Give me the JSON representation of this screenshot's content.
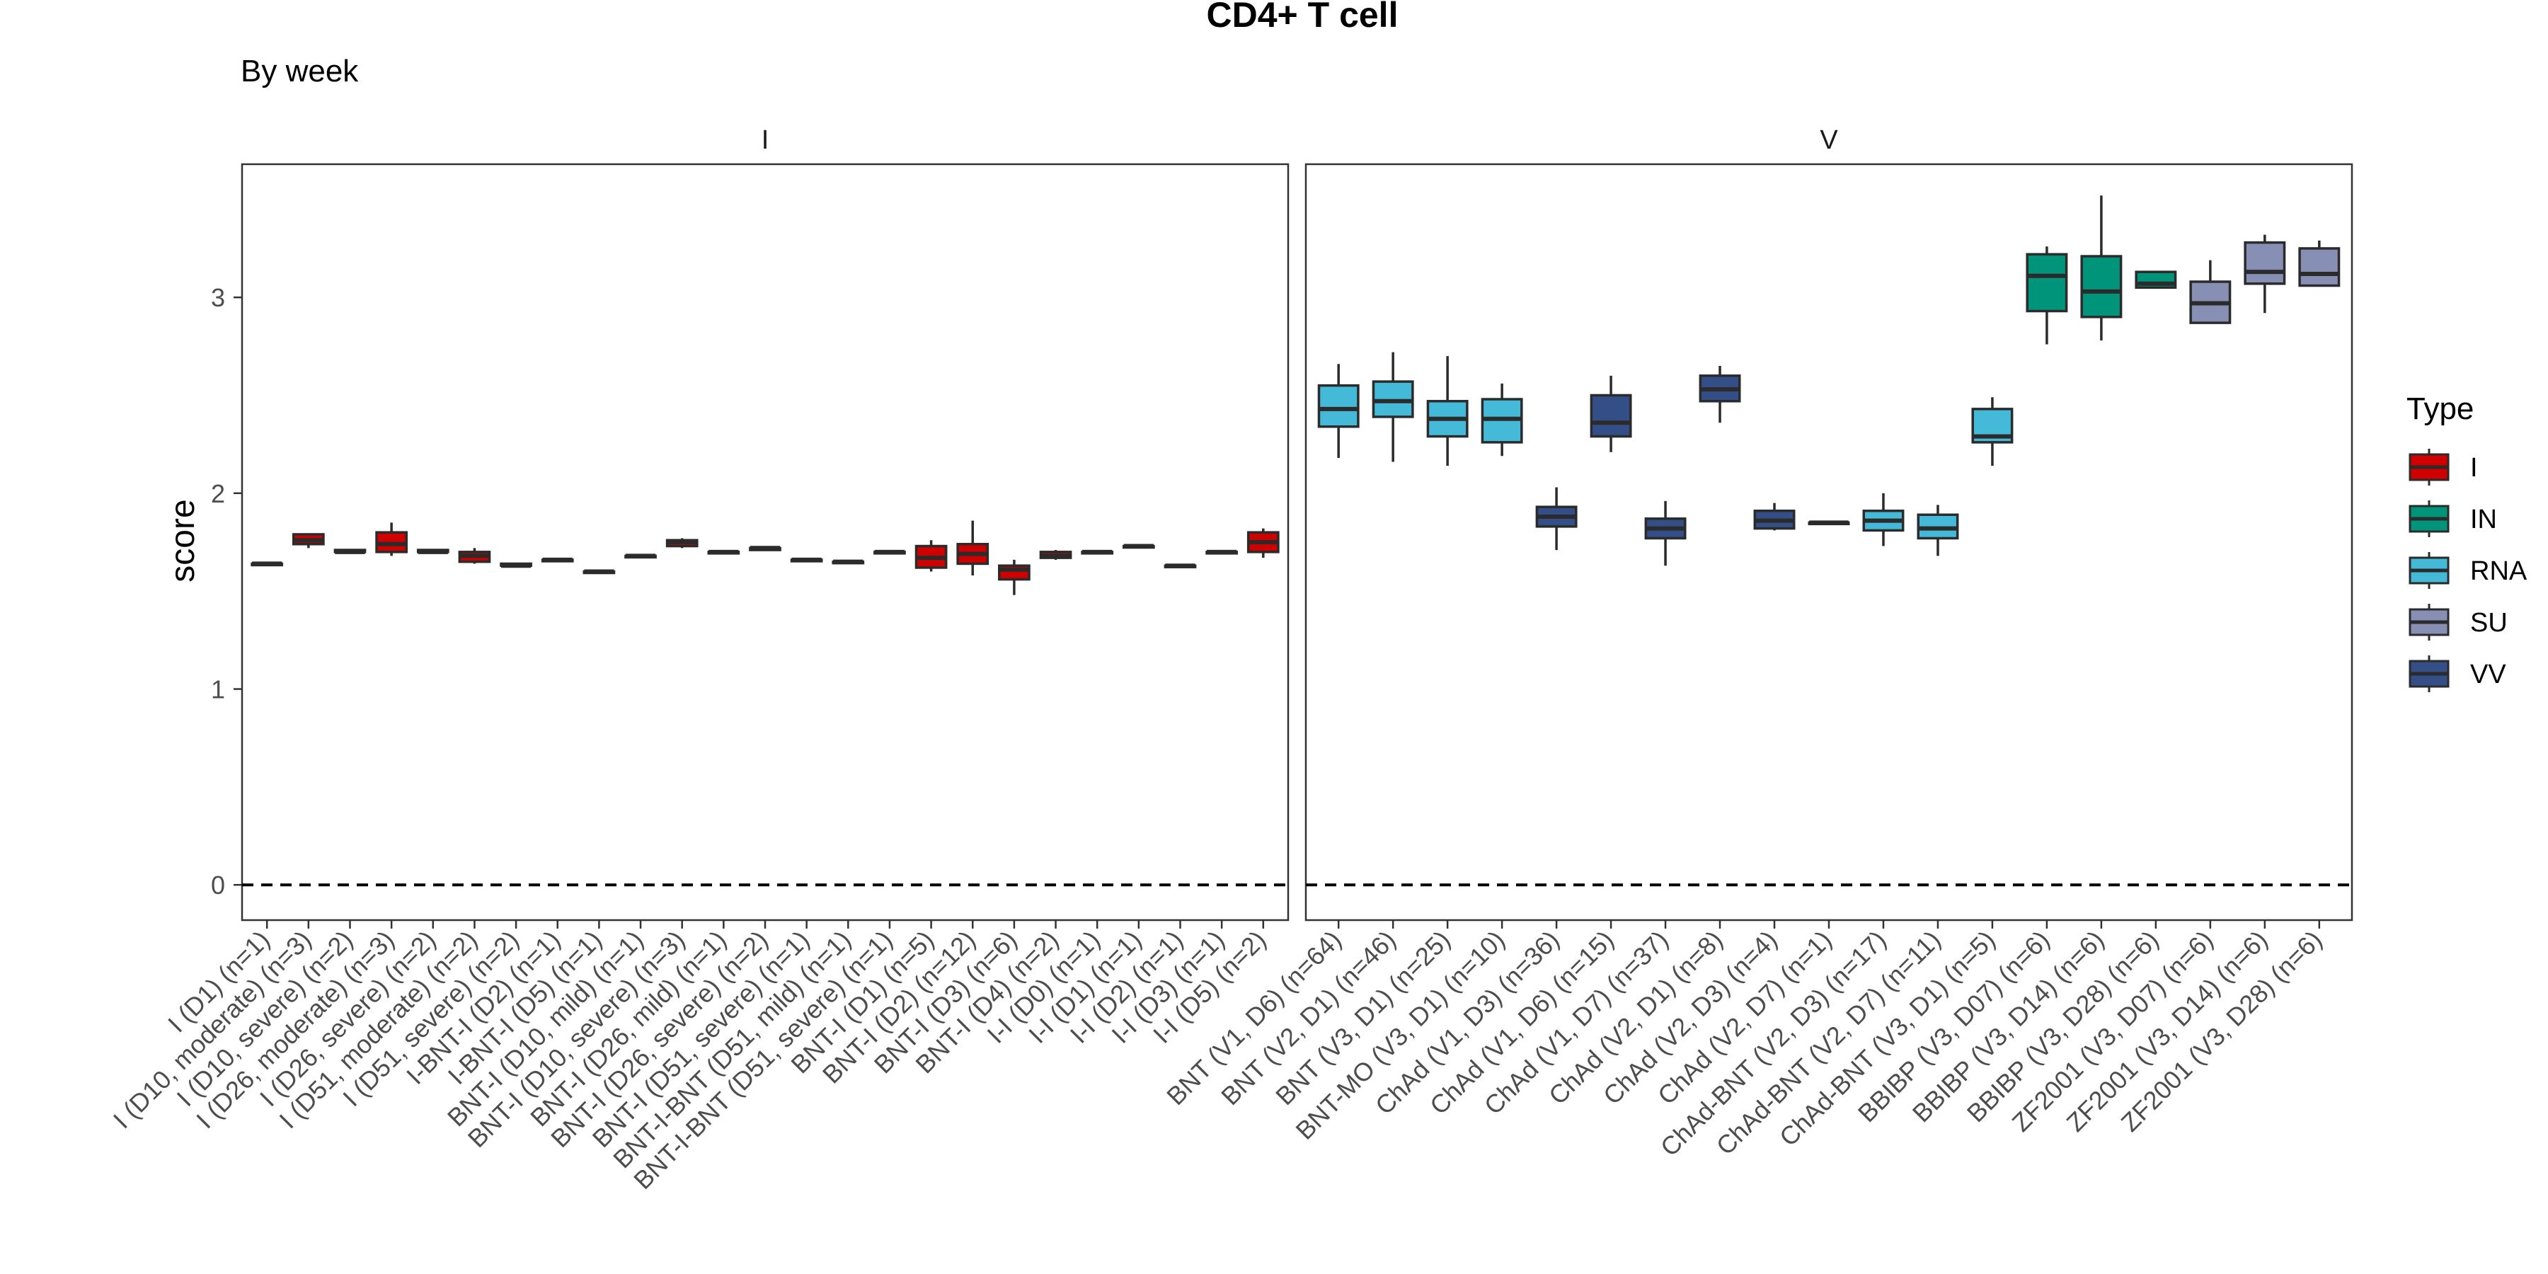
{
  "chart_data": {
    "type": "boxplot",
    "title": "CD4+ T cell",
    "subtitle": "By week",
    "ylabel": "score",
    "xlabel": "",
    "ylim": [
      -0.18,
      3.68
    ],
    "yticks": [
      0,
      1,
      2,
      3
    ],
    "reference_line": {
      "y": 0,
      "style": "dashed"
    },
    "grid": false,
    "legend": {
      "title": "Type",
      "position": "right",
      "items": [
        {
          "label": "I",
          "color": "#D10000"
        },
        {
          "label": "IN",
          "color": "#00957A"
        },
        {
          "label": "RNA",
          "color": "#45B9D8"
        },
        {
          "label": "SU",
          "color": "#8790B4"
        },
        {
          "label": "VV",
          "color": "#344F88"
        }
      ]
    },
    "panels": [
      {
        "label": "I",
        "boxes": [
          {
            "category": "I (D1) (n=1)",
            "type": "I",
            "q1": 1.64,
            "median": 1.64,
            "q3": 1.64,
            "lo": 1.64,
            "hi": 1.64
          },
          {
            "category": "I (D10, moderate) (n=3)",
            "type": "I",
            "q1": 1.74,
            "median": 1.76,
            "q3": 1.79,
            "lo": 1.72,
            "hi": 1.79
          },
          {
            "category": "I (D10, severe) (n=2)",
            "type": "I",
            "q1": 1.7,
            "median": 1.7,
            "q3": 1.71,
            "lo": 1.7,
            "hi": 1.71
          },
          {
            "category": "I (D26, moderate) (n=3)",
            "type": "I",
            "q1": 1.7,
            "median": 1.74,
            "q3": 1.8,
            "lo": 1.68,
            "hi": 1.85
          },
          {
            "category": "I (D26, severe) (n=2)",
            "type": "I",
            "q1": 1.7,
            "median": 1.7,
            "q3": 1.71,
            "lo": 1.7,
            "hi": 1.71
          },
          {
            "category": "I (D51, moderate) (n=2)",
            "type": "I",
            "q1": 1.65,
            "median": 1.68,
            "q3": 1.7,
            "lo": 1.64,
            "hi": 1.72
          },
          {
            "category": "I (D51, severe) (n=2)",
            "type": "I",
            "q1": 1.63,
            "median": 1.63,
            "q3": 1.64,
            "lo": 1.63,
            "hi": 1.64
          },
          {
            "category": "I-BNT-I (D2) (n=1)",
            "type": "I",
            "q1": 1.66,
            "median": 1.66,
            "q3": 1.66,
            "lo": 1.66,
            "hi": 1.66
          },
          {
            "category": "I-BNT-I (D5) (n=1)",
            "type": "I",
            "q1": 1.6,
            "median": 1.6,
            "q3": 1.6,
            "lo": 1.6,
            "hi": 1.6
          },
          {
            "category": "BNT-I (D10, mild) (n=1)",
            "type": "I",
            "q1": 1.68,
            "median": 1.68,
            "q3": 1.68,
            "lo": 1.68,
            "hi": 1.68
          },
          {
            "category": "BNT-I (D10, severe) (n=3)",
            "type": "I",
            "q1": 1.73,
            "median": 1.75,
            "q3": 1.76,
            "lo": 1.72,
            "hi": 1.77
          },
          {
            "category": "BNT-I (D26, mild) (n=1)",
            "type": "I",
            "q1": 1.7,
            "median": 1.7,
            "q3": 1.7,
            "lo": 1.7,
            "hi": 1.7
          },
          {
            "category": "BNT-I (D26, severe) (n=2)",
            "type": "I",
            "q1": 1.71,
            "median": 1.72,
            "q3": 1.72,
            "lo": 1.71,
            "hi": 1.72
          },
          {
            "category": "BNT-I (D51, severe) (n=1)",
            "type": "I",
            "q1": 1.66,
            "median": 1.66,
            "q3": 1.66,
            "lo": 1.66,
            "hi": 1.66
          },
          {
            "category": "BNT-I-BNT (D51, mild) (n=1)",
            "type": "I",
            "q1": 1.65,
            "median": 1.65,
            "q3": 1.65,
            "lo": 1.65,
            "hi": 1.65
          },
          {
            "category": "BNT-I-BNT (D51, severe) (n=1)",
            "type": "I",
            "q1": 1.7,
            "median": 1.7,
            "q3": 1.7,
            "lo": 1.7,
            "hi": 1.7
          },
          {
            "category": "BNT-I (D1) (n=5)",
            "type": "I",
            "q1": 1.62,
            "median": 1.67,
            "q3": 1.73,
            "lo": 1.6,
            "hi": 1.76
          },
          {
            "category": "BNT-I (D2) (n=12)",
            "type": "I",
            "q1": 1.64,
            "median": 1.69,
            "q3": 1.74,
            "lo": 1.58,
            "hi": 1.86
          },
          {
            "category": "BNT-I (D3) (n=6)",
            "type": "I",
            "q1": 1.56,
            "median": 1.61,
            "q3": 1.63,
            "lo": 1.48,
            "hi": 1.66
          },
          {
            "category": "BNT-I (D4) (n=2)",
            "type": "I",
            "q1": 1.67,
            "median": 1.68,
            "q3": 1.7,
            "lo": 1.66,
            "hi": 1.71
          },
          {
            "category": "I-I (D0) (n=1)",
            "type": "I",
            "q1": 1.7,
            "median": 1.7,
            "q3": 1.7,
            "lo": 1.7,
            "hi": 1.7
          },
          {
            "category": "I-I (D1) (n=1)",
            "type": "I",
            "q1": 1.73,
            "median": 1.73,
            "q3": 1.73,
            "lo": 1.73,
            "hi": 1.73
          },
          {
            "category": "I-I (D2) (n=1)",
            "type": "I",
            "q1": 1.63,
            "median": 1.63,
            "q3": 1.63,
            "lo": 1.63,
            "hi": 1.63
          },
          {
            "category": "I-I (D3) (n=1)",
            "type": "I",
            "q1": 1.7,
            "median": 1.7,
            "q3": 1.7,
            "lo": 1.7,
            "hi": 1.7
          },
          {
            "category": "I-I (D5) (n=2)",
            "type": "I",
            "q1": 1.7,
            "median": 1.75,
            "q3": 1.8,
            "lo": 1.67,
            "hi": 1.82
          }
        ]
      },
      {
        "label": "V",
        "boxes": [
          {
            "category": "BNT (V1, D6) (n=64)",
            "type": "RNA",
            "q1": 2.34,
            "median": 2.43,
            "q3": 2.55,
            "lo": 2.18,
            "hi": 2.66
          },
          {
            "category": "BNT (V2, D1) (n=46)",
            "type": "RNA",
            "q1": 2.39,
            "median": 2.47,
            "q3": 2.57,
            "lo": 2.16,
            "hi": 2.72
          },
          {
            "category": "BNT (V3, D1) (n=25)",
            "type": "RNA",
            "q1": 2.29,
            "median": 2.38,
            "q3": 2.47,
            "lo": 2.14,
            "hi": 2.7
          },
          {
            "category": "BNT-MO (V3, D1) (n=10)",
            "type": "RNA",
            "q1": 2.26,
            "median": 2.38,
            "q3": 2.48,
            "lo": 2.19,
            "hi": 2.56
          },
          {
            "category": "ChAd (V1, D3) (n=36)",
            "type": "VV",
            "q1": 1.83,
            "median": 1.88,
            "q3": 1.93,
            "lo": 1.71,
            "hi": 2.03
          },
          {
            "category": "ChAd (V1, D6) (n=15)",
            "type": "VV",
            "q1": 2.29,
            "median": 2.36,
            "q3": 2.5,
            "lo": 2.21,
            "hi": 2.6
          },
          {
            "category": "ChAd (V1, D7) (n=37)",
            "type": "VV",
            "q1": 1.77,
            "median": 1.82,
            "q3": 1.87,
            "lo": 1.63,
            "hi": 1.96
          },
          {
            "category": "ChAd (V2, D1) (n=8)",
            "type": "VV",
            "q1": 2.47,
            "median": 2.53,
            "q3": 2.6,
            "lo": 2.36,
            "hi": 2.65
          },
          {
            "category": "ChAd (V2, D3) (n=4)",
            "type": "VV",
            "q1": 1.82,
            "median": 1.86,
            "q3": 1.91,
            "lo": 1.81,
            "hi": 1.95
          },
          {
            "category": "ChAd (V2, D7) (n=1)",
            "type": "VV",
            "q1": 1.85,
            "median": 1.85,
            "q3": 1.85,
            "lo": 1.85,
            "hi": 1.85
          },
          {
            "category": "ChAd-BNT (V2, D3) (n=17)",
            "type": "RNA",
            "q1": 1.81,
            "median": 1.86,
            "q3": 1.91,
            "lo": 1.73,
            "hi": 2.0
          },
          {
            "category": "ChAd-BNT (V2, D7) (n=11)",
            "type": "RNA",
            "q1": 1.77,
            "median": 1.82,
            "q3": 1.89,
            "lo": 1.68,
            "hi": 1.94
          },
          {
            "category": "ChAd-BNT (V3, D1) (n=5)",
            "type": "RNA",
            "q1": 2.26,
            "median": 2.29,
            "q3": 2.43,
            "lo": 2.14,
            "hi": 2.49
          },
          {
            "category": "BBIBP (V3, D07) (n=6)",
            "type": "IN",
            "q1": 2.93,
            "median": 3.11,
            "q3": 3.22,
            "lo": 2.76,
            "hi": 3.26
          },
          {
            "category": "BBIBP (V3, D14) (n=6)",
            "type": "IN",
            "q1": 2.9,
            "median": 3.03,
            "q3": 3.21,
            "lo": 2.78,
            "hi": 3.52
          },
          {
            "category": "BBIBP (V3, D28) (n=6)",
            "type": "IN",
            "q1": 3.05,
            "median": 3.07,
            "q3": 3.13,
            "lo": 3.05,
            "hi": 3.13
          },
          {
            "category": "ZF2001 (V3, D07) (n=6)",
            "type": "SU",
            "q1": 2.87,
            "median": 2.97,
            "q3": 3.08,
            "lo": 2.87,
            "hi": 3.19
          },
          {
            "category": "ZF2001 (V3, D14) (n=6)",
            "type": "SU",
            "q1": 3.07,
            "median": 3.13,
            "q3": 3.28,
            "lo": 2.92,
            "hi": 3.32
          },
          {
            "category": "ZF2001 (V3, D28) (n=6)",
            "type": "SU",
            "q1": 3.06,
            "median": 3.12,
            "q3": 3.25,
            "lo": 3.06,
            "hi": 3.29
          }
        ]
      }
    ]
  }
}
